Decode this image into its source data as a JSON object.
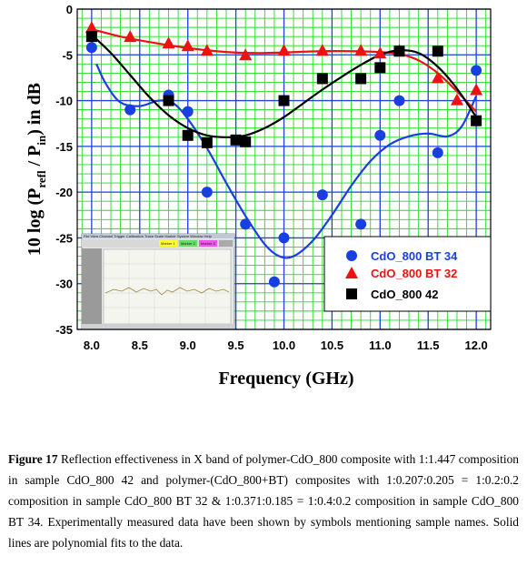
{
  "chart_data": {
    "type": "scatter",
    "xlabel": "Frequency (GHz)",
    "ylabel_parts": [
      "10 log (P",
      "refl",
      " / P",
      "in",
      ") in dB"
    ],
    "xlim": [
      7.85,
      12.15
    ],
    "ylim": [
      -35,
      0
    ],
    "xticks": [
      "8.0",
      "8.5",
      "9.0",
      "9.5",
      "10.0",
      "10.5",
      "11.0",
      "11.5",
      "12.0"
    ],
    "xtick_values": [
      8.0,
      8.5,
      9.0,
      9.5,
      10.0,
      10.5,
      11.0,
      11.5,
      12.0
    ],
    "yticks": [
      "0",
      "-5",
      "-10",
      "-15",
      "-20",
      "-25",
      "-30",
      "-35"
    ],
    "ytick_values": [
      0,
      -5,
      -10,
      -15,
      -20,
      -25,
      -30,
      -35
    ],
    "grid": true,
    "legend_position": "bottom-right",
    "series": [
      {
        "name": "CdO_800 BT 34",
        "marker": "circle",
        "color": "#1a3fe0",
        "fit_color": "#1a3fe0",
        "x": [
          8.0,
          8.4,
          8.8,
          9.0,
          9.2,
          9.6,
          9.9,
          10.0,
          10.4,
          10.8,
          11.0,
          11.2,
          11.6,
          12.0
        ],
        "y": [
          -4.2,
          -11.0,
          -9.4,
          -11.2,
          -20.0,
          -23.5,
          -29.8,
          -25.0,
          -20.3,
          -23.5,
          -13.8,
          -10.0,
          -15.7,
          -6.7
        ],
        "fit_x": [
          8.05,
          8.15,
          8.3,
          8.5,
          8.7,
          8.85,
          9.0,
          9.2,
          9.4,
          9.6,
          9.8,
          9.95,
          10.1,
          10.3,
          10.5,
          10.7,
          10.9,
          11.1,
          11.3,
          11.5,
          11.7,
          11.85,
          12.0
        ],
        "fit_y": [
          -6.0,
          -8.2,
          -10.2,
          -10.6,
          -10.0,
          -10.3,
          -12.0,
          -15.2,
          -19.0,
          -22.6,
          -25.7,
          -27.0,
          -27.0,
          -25.3,
          -22.5,
          -19.3,
          -16.6,
          -14.8,
          -13.9,
          -13.6,
          -13.9,
          -12.8,
          -9.5
        ]
      },
      {
        "name": "CdO_800 BT 32",
        "marker": "triangle",
        "color": "#ee1111",
        "fit_color": "#ee1111",
        "x": [
          8.0,
          8.4,
          8.8,
          9.0,
          9.2,
          9.6,
          10.0,
          10.4,
          10.8,
          11.0,
          11.2,
          11.6,
          11.8,
          12.0
        ],
        "y": [
          -2.0,
          -3.0,
          -3.7,
          -4.0,
          -4.5,
          -5.0,
          -4.5,
          -4.5,
          -4.5,
          -4.8,
          -4.5,
          -7.5,
          -9.9,
          -8.8
        ],
        "fit_x": [
          8.0,
          8.3,
          8.6,
          8.9,
          9.2,
          9.5,
          9.8,
          10.1,
          10.4,
          10.7,
          11.0,
          11.2,
          11.4,
          11.6,
          11.8,
          12.0
        ],
        "fit_y": [
          -2.2,
          -3.0,
          -3.6,
          -4.1,
          -4.5,
          -4.75,
          -4.8,
          -4.7,
          -4.6,
          -4.6,
          -4.7,
          -4.9,
          -5.6,
          -7.0,
          -9.0,
          -11.2
        ]
      },
      {
        "name": "CdO_800 42",
        "marker": "square",
        "color": "#000000",
        "fit_color": "#000000",
        "x": [
          8.0,
          8.8,
          9.0,
          9.2,
          9.5,
          9.6,
          10.0,
          10.4,
          10.8,
          11.0,
          11.2,
          11.6,
          12.0
        ],
        "y": [
          -3.0,
          -10.0,
          -13.8,
          -14.6,
          -14.3,
          -14.5,
          -10.0,
          -7.6,
          -7.6,
          -6.4,
          -4.6,
          -4.6,
          -12.2
        ],
        "fit_x": [
          8.0,
          8.2,
          8.4,
          8.6,
          8.8,
          9.0,
          9.2,
          9.4,
          9.6,
          9.8,
          10.0,
          10.2,
          10.4,
          10.6,
          10.8,
          11.0,
          11.2,
          11.4,
          11.6,
          11.8,
          12.0
        ],
        "fit_y": [
          -2.8,
          -4.8,
          -7.2,
          -9.6,
          -11.6,
          -13.0,
          -13.8,
          -14.0,
          -13.8,
          -13.0,
          -11.8,
          -10.3,
          -8.8,
          -7.4,
          -6.1,
          -5.0,
          -4.5,
          -4.8,
          -6.3,
          -8.7,
          -11.8
        ]
      }
    ]
  },
  "inset": {
    "menu_items": [
      "File",
      "View",
      "Channel",
      "Trigger",
      "Calibration",
      "Trace",
      "Scale",
      "Marker",
      "System",
      "Window",
      "Help"
    ],
    "marker_labels": [
      "Marker 1",
      "Marker 2",
      "Marker 3",
      "Marker 4"
    ]
  },
  "caption": {
    "label": "Figure 17",
    "text": " Reflection effectiveness in X band of polymer-CdO_800 composite with 1:1.447 composition in sample CdO_800 42 and polymer-(CdO_800+BT) composites with 1:0.207:0.205 = 1:0.2:0.2 composition in sample CdO_800 BT 32 & 1:0.371:0.185 = 1:0.4:0.2 composition in sample CdO_800 BT 34. Experimentally measured data have been shown by symbols mentioning sample names. Solid lines are polynomial fits to the data."
  }
}
